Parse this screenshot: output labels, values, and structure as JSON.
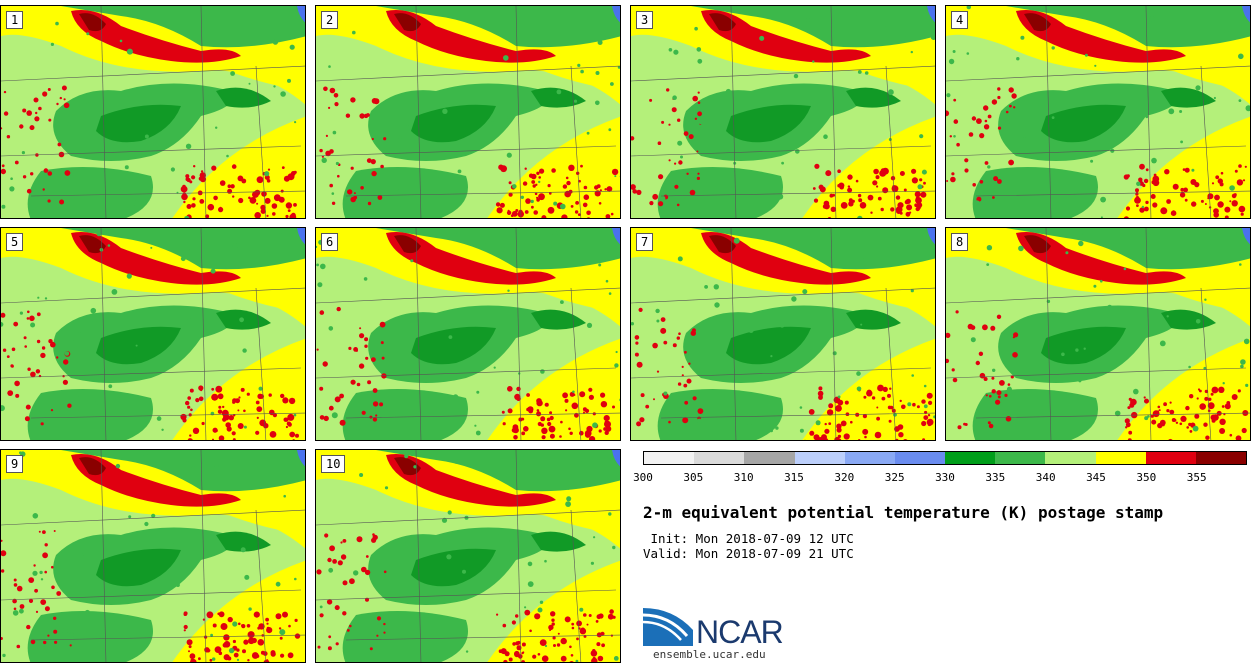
{
  "panels": [
    {
      "label": "1"
    },
    {
      "label": "2"
    },
    {
      "label": "3"
    },
    {
      "label": "4"
    },
    {
      "label": "5"
    },
    {
      "label": "6"
    },
    {
      "label": "7"
    },
    {
      "label": "8"
    },
    {
      "label": "9"
    },
    {
      "label": "10"
    }
  ],
  "colorbar": {
    "colors": [
      "#f2f2f2",
      "#dadada",
      "#a6a6a6",
      "#bccffb",
      "#8aa9f4",
      "#6a8cef",
      "#009e1a",
      "#3cb84a",
      "#b4f07a",
      "#ffff00",
      "#e00010",
      "#8a0000"
    ],
    "tick_labels": [
      "300",
      "305",
      "310",
      "315",
      "320",
      "325",
      "330",
      "335",
      "340",
      "345",
      "350",
      "355"
    ]
  },
  "map_colors": {
    "dark_green": "#119a26",
    "mid_green": "#3cb84a",
    "light_green": "#b4f07a",
    "yellow": "#ffff00",
    "red": "#e00010",
    "dark_red": "#8a0000",
    "water": "#4a72ee"
  },
  "title": "2-m equivalent potential temperature (K) postage stamp",
  "init": " Init: Mon 2018-07-09 12 UTC",
  "valid": "Valid: Mon 2018-07-09 21 UTC",
  "logo": {
    "text": "NCAR",
    "website": "ensemble.ucar.edu"
  }
}
